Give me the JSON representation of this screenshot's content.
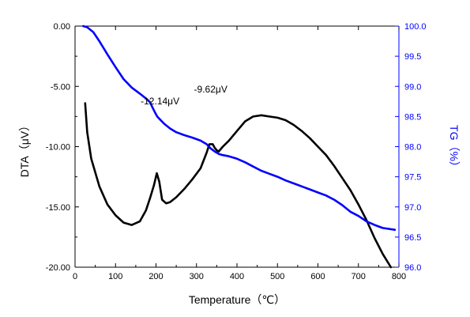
{
  "chart_data": {
    "type": "line",
    "xlabel": "Temperature（℃）",
    "ylabel_left": "DTA（μV）",
    "ylabel_right": "TG（%）",
    "xlim": [
      0,
      800
    ],
    "ylim_left": [
      -20,
      0
    ],
    "ylim_right": [
      96,
      100
    ],
    "x_ticks": [
      "0",
      "100",
      "200",
      "300",
      "400",
      "500",
      "600",
      "700",
      "800"
    ],
    "y_left_ticks": [
      "0.00",
      "-5.00",
      "-10.00",
      "-15.00",
      "-20.00"
    ],
    "y_right_ticks": [
      "100.0",
      "99.5",
      "99.0",
      "98.5",
      "98.0",
      "97.5",
      "97.0",
      "96.5",
      "96.0"
    ],
    "grid": false,
    "series": [
      {
        "axis": "left",
        "color": "#000000",
        "x": [
          25,
          30,
          40,
          60,
          80,
          100,
          120,
          140,
          160,
          175,
          185,
          195,
          202,
          208,
          215,
          225,
          235,
          250,
          270,
          290,
          310,
          325,
          332,
          340,
          345,
          350,
          355,
          365,
          380,
          400,
          420,
          440,
          460,
          480,
          500,
          520,
          540,
          560,
          580,
          600,
          620,
          640,
          660,
          680,
          700,
          720,
          740,
          760,
          780
        ],
        "y": [
          -6.4,
          -8.8,
          -11.0,
          -13.3,
          -14.8,
          -15.7,
          -16.3,
          -16.5,
          -16.2,
          -15.3,
          -14.3,
          -13.2,
          -12.2,
          -12.9,
          -14.4,
          -14.7,
          -14.6,
          -14.2,
          -13.5,
          -12.7,
          -11.8,
          -10.5,
          -9.8,
          -9.8,
          -10.1,
          -10.3,
          -10.4,
          -10.0,
          -9.5,
          -8.7,
          -7.9,
          -7.5,
          -7.4,
          -7.5,
          -7.6,
          -7.8,
          -8.2,
          -8.7,
          -9.3,
          -10.0,
          -10.7,
          -11.6,
          -12.6,
          -13.6,
          -14.8,
          -16.1,
          -17.6,
          -18.9,
          -20.0
        ]
      },
      {
        "axis": "right",
        "color": "#0000ff",
        "x": [
          20,
          30,
          45,
          60,
          80,
          100,
          120,
          140,
          160,
          175,
          185,
          192,
          198,
          203,
          210,
          220,
          235,
          250,
          270,
          290,
          310,
          325,
          335,
          345,
          355,
          365,
          380,
          400,
          420,
          440,
          460,
          480,
          500,
          520,
          540,
          560,
          580,
          600,
          620,
          640,
          660,
          680,
          700,
          720,
          740,
          760,
          790
        ],
        "y": [
          100.0,
          99.98,
          99.9,
          99.75,
          99.53,
          99.32,
          99.12,
          98.98,
          98.88,
          98.8,
          98.74,
          98.64,
          98.56,
          98.5,
          98.45,
          98.38,
          98.3,
          98.24,
          98.19,
          98.15,
          98.1,
          98.04,
          97.97,
          97.92,
          97.88,
          97.86,
          97.84,
          97.8,
          97.74,
          97.67,
          97.6,
          97.55,
          97.5,
          97.44,
          97.39,
          97.34,
          97.29,
          97.24,
          97.19,
          97.12,
          97.03,
          96.92,
          96.85,
          96.76,
          96.7,
          96.65,
          96.62
        ]
      }
    ],
    "annotations": [
      {
        "text": "-9.62μV",
        "x": 335,
        "y": -5.5
      },
      {
        "text": "-12.14μV",
        "x": 210,
        "y": -6.5
      }
    ]
  }
}
